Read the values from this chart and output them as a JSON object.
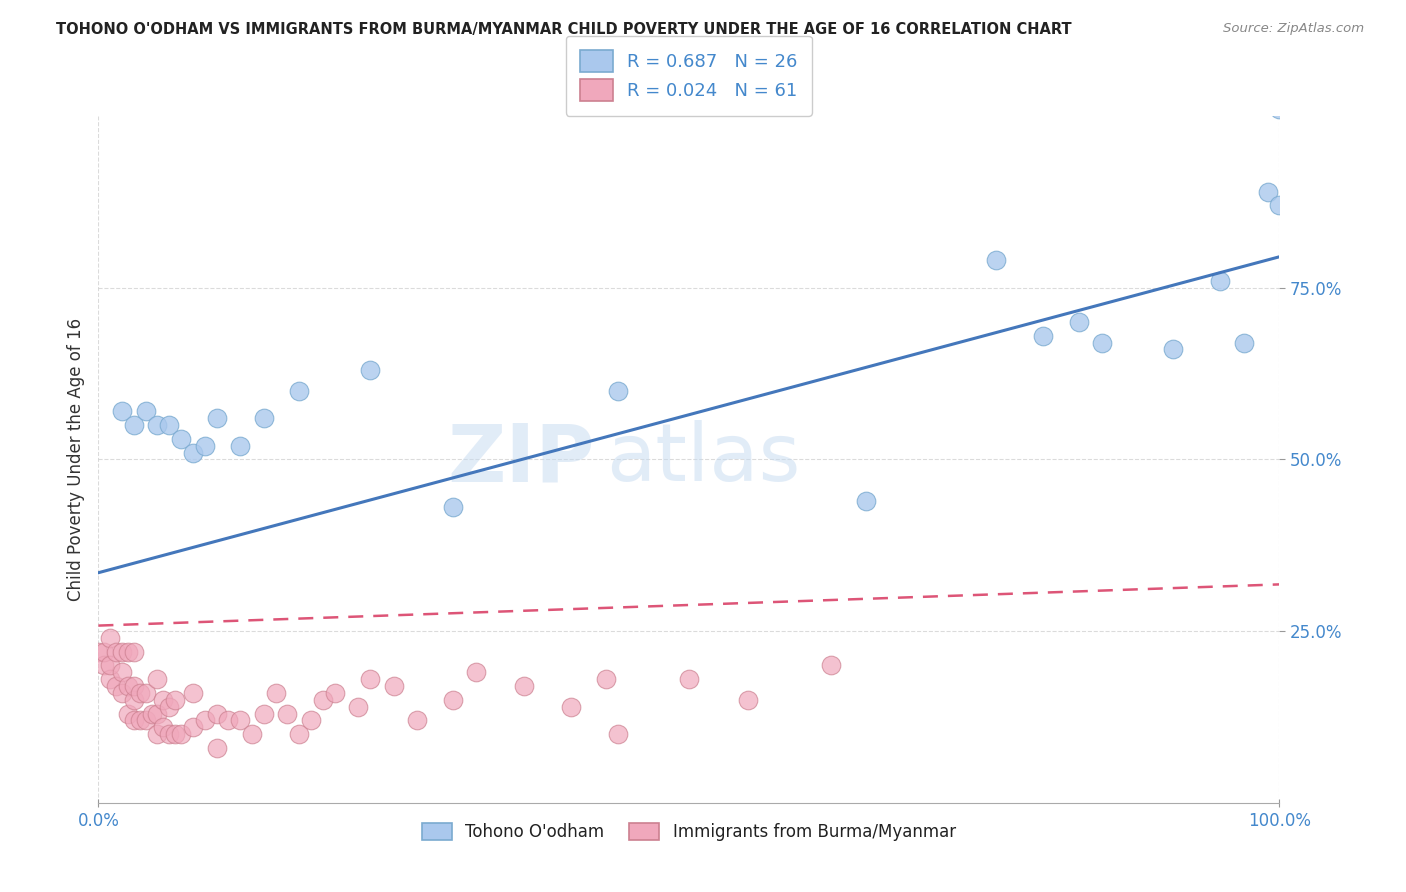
{
  "title": "TOHONO O'ODHAM VS IMMIGRANTS FROM BURMA/MYANMAR CHILD POVERTY UNDER THE AGE OF 16 CORRELATION CHART",
  "source": "Source: ZipAtlas.com",
  "ylabel": "Child Poverty Under the Age of 16",
  "xlabel": "",
  "xlim": [
    0,
    1.0
  ],
  "ylim": [
    0,
    1.0
  ],
  "xticks_pos": [
    0.0,
    1.0
  ],
  "xticklabels": [
    "0.0%",
    "100.0%"
  ],
  "yticks": [
    0.25,
    0.5,
    0.75
  ],
  "yticklabels": [
    "25.0%",
    "50.0%",
    "75.0%"
  ],
  "blue_R": 0.687,
  "blue_N": 26,
  "pink_R": 0.024,
  "pink_N": 61,
  "blue_color": "#aac8ed",
  "pink_color": "#f0a8bc",
  "blue_edge": "#7aaad0",
  "pink_edge": "#cc8090",
  "blue_line_color": "#4477bb",
  "pink_line_color": "#dd5577",
  "watermark_zip": "ZIP",
  "watermark_atlas": "atlas",
  "blue_scatter_x": [
    0.02,
    0.03,
    0.04,
    0.05,
    0.06,
    0.07,
    0.08,
    0.09,
    0.1,
    0.12,
    0.14,
    0.17,
    0.23,
    0.3,
    0.44,
    0.65,
    0.76,
    0.8,
    0.83,
    0.85,
    0.91,
    0.95,
    0.97,
    0.99,
    1.0,
    1.0
  ],
  "blue_scatter_y": [
    0.57,
    0.55,
    0.57,
    0.55,
    0.55,
    0.53,
    0.51,
    0.52,
    0.56,
    0.52,
    0.56,
    0.6,
    0.63,
    0.43,
    0.6,
    0.44,
    0.79,
    0.68,
    0.7,
    0.67,
    0.66,
    0.76,
    0.67,
    0.89,
    0.87,
    1.01
  ],
  "pink_scatter_x": [
    0.0,
    0.005,
    0.005,
    0.01,
    0.01,
    0.01,
    0.015,
    0.015,
    0.02,
    0.02,
    0.02,
    0.025,
    0.025,
    0.025,
    0.03,
    0.03,
    0.03,
    0.03,
    0.035,
    0.035,
    0.04,
    0.04,
    0.045,
    0.05,
    0.05,
    0.05,
    0.055,
    0.055,
    0.06,
    0.06,
    0.065,
    0.065,
    0.07,
    0.08,
    0.08,
    0.09,
    0.1,
    0.1,
    0.11,
    0.12,
    0.13,
    0.14,
    0.15,
    0.16,
    0.17,
    0.18,
    0.19,
    0.2,
    0.22,
    0.23,
    0.25,
    0.27,
    0.3,
    0.32,
    0.36,
    0.4,
    0.43,
    0.44,
    0.5,
    0.55,
    0.62
  ],
  "pink_scatter_y": [
    0.22,
    0.2,
    0.22,
    0.18,
    0.2,
    0.24,
    0.17,
    0.22,
    0.16,
    0.19,
    0.22,
    0.13,
    0.17,
    0.22,
    0.12,
    0.15,
    0.17,
    0.22,
    0.12,
    0.16,
    0.12,
    0.16,
    0.13,
    0.1,
    0.13,
    0.18,
    0.11,
    0.15,
    0.1,
    0.14,
    0.1,
    0.15,
    0.1,
    0.11,
    0.16,
    0.12,
    0.08,
    0.13,
    0.12,
    0.12,
    0.1,
    0.13,
    0.16,
    0.13,
    0.1,
    0.12,
    0.15,
    0.16,
    0.14,
    0.18,
    0.17,
    0.12,
    0.15,
    0.19,
    0.17,
    0.14,
    0.18,
    0.1,
    0.18,
    0.15,
    0.2
  ],
  "blue_trend_x": [
    0.0,
    1.0
  ],
  "blue_trend_y": [
    0.335,
    0.795
  ],
  "pink_trend_x": [
    0.0,
    1.0
  ],
  "pink_trend_y": [
    0.258,
    0.318
  ],
  "background_color": "#ffffff",
  "grid_color": "#cccccc",
  "legend_label_blue": "Tohono O'odham",
  "legend_label_pink": "Immigrants from Burma/Myanmar"
}
